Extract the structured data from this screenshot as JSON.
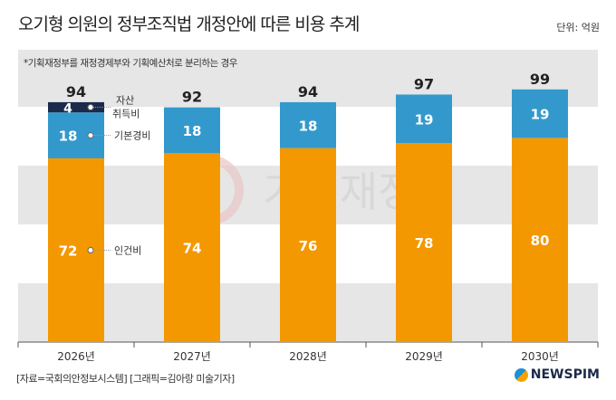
{
  "title": "오기형 의원의 정부조직법 개정안에 따른 비용 추계",
  "unit": "단위: 억원",
  "note": "*기획재정부를 재정경제부와 기획예산처로 분리하는 경우",
  "watermark": "기획재정부",
  "source": "[자료=국회의안정보시스템] [그래픽=김아랑 미술기자]",
  "logo": "NEWSPIM",
  "chart_data": {
    "type": "bar",
    "stacked": true,
    "categories": [
      "2026년",
      "2027년",
      "2028년",
      "2029년",
      "2030년"
    ],
    "series": [
      {
        "name": "인건비",
        "color": "#f39800",
        "values": [
          72,
          74,
          76,
          78,
          80
        ]
      },
      {
        "name": "기본경비",
        "color": "#3399cc",
        "values": [
          18,
          18,
          18,
          19,
          19
        ]
      },
      {
        "name": "자산 취득비",
        "color": "#1b2a4a",
        "values": [
          4,
          0,
          0,
          0,
          0
        ]
      }
    ],
    "totals": [
      94,
      92,
      94,
      97,
      99
    ],
    "ylim": [
      0,
      110
    ],
    "legend_labels": [
      "자산",
      "취득비",
      "기본경비",
      "인건비"
    ]
  }
}
